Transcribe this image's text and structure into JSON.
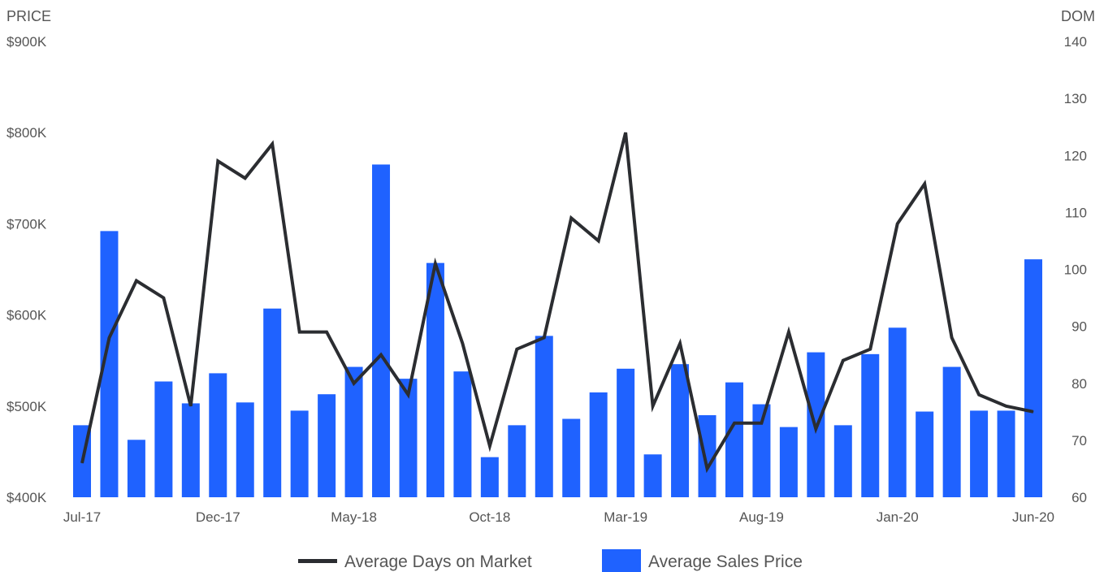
{
  "chart_data": {
    "type": "bar",
    "left_axis_title": "PRICE",
    "right_axis_title": "DOM",
    "left_axis": {
      "min": 400000,
      "max": 900000,
      "ticks": [
        "$400K",
        "$500K",
        "$600K",
        "$700K",
        "$800K",
        "$900K"
      ],
      "tick_values": [
        400000,
        500000,
        600000,
        700000,
        800000,
        900000
      ]
    },
    "right_axis": {
      "min": 60,
      "max": 140,
      "ticks": [
        "60",
        "70",
        "80",
        "90",
        "100",
        "110",
        "120",
        "130",
        "140"
      ],
      "tick_values": [
        60,
        70,
        80,
        90,
        100,
        110,
        120,
        130,
        140
      ]
    },
    "categories": [
      "Jul-17",
      "Aug-17",
      "Sep-17",
      "Oct-17",
      "Nov-17",
      "Dec-17",
      "Jan-18",
      "Feb-18",
      "Mar-18",
      "Apr-18",
      "May-18",
      "Jun-18",
      "Jul-18",
      "Aug-18",
      "Sep-18",
      "Oct-18",
      "Nov-18",
      "Dec-18",
      "Jan-19",
      "Feb-19",
      "Mar-19",
      "Apr-19",
      "May-19",
      "Jun-19",
      "Jul-19",
      "Aug-19",
      "Sep-19",
      "Oct-19",
      "Nov-19",
      "Dec-19",
      "Jan-20",
      "Feb-20",
      "Mar-20",
      "Apr-20",
      "May-20",
      "Jun-20"
    ],
    "x_tick_labels": [
      {
        "index": 0,
        "label": "Jul-17"
      },
      {
        "index": 5,
        "label": "Dec-17"
      },
      {
        "index": 10,
        "label": "May-18"
      },
      {
        "index": 15,
        "label": "Oct-18"
      },
      {
        "index": 20,
        "label": "Mar-19"
      },
      {
        "index": 25,
        "label": "Aug-19"
      },
      {
        "index": 30,
        "label": "Jan-20"
      },
      {
        "index": 35,
        "label": "Jun-20"
      }
    ],
    "series": [
      {
        "name": "Average Sales Price",
        "type": "bar",
        "axis": "left",
        "color": "#1f62ff",
        "values": [
          479000,
          692000,
          463000,
          527000,
          503000,
          536000,
          504000,
          607000,
          495000,
          513000,
          543000,
          765000,
          530000,
          657000,
          538000,
          444000,
          479000,
          577000,
          486000,
          515000,
          541000,
          447000,
          546000,
          490000,
          526000,
          502000,
          477000,
          559000,
          479000,
          557000,
          586000,
          494000,
          543000,
          495000,
          495000,
          661000
        ]
      },
      {
        "name": "Average Days on Market",
        "type": "line",
        "axis": "right",
        "color": "#2b2d31",
        "values": [
          66,
          88,
          98,
          95,
          76,
          119,
          116,
          122,
          89,
          89,
          80,
          85,
          78,
          101,
          87,
          69,
          86,
          88,
          109,
          105,
          124,
          76,
          87,
          65,
          73,
          73,
          89,
          72,
          84,
          86,
          108,
          115,
          88,
          78,
          76,
          75
        ]
      }
    ],
    "legend": {
      "placement": "bottom-center",
      "items": [
        {
          "label": "Average Days on Market",
          "kind": "line",
          "color": "#2b2d31"
        },
        {
          "label": "Average Sales Price",
          "kind": "bar",
          "color": "#1f62ff"
        }
      ]
    },
    "grid": false
  }
}
